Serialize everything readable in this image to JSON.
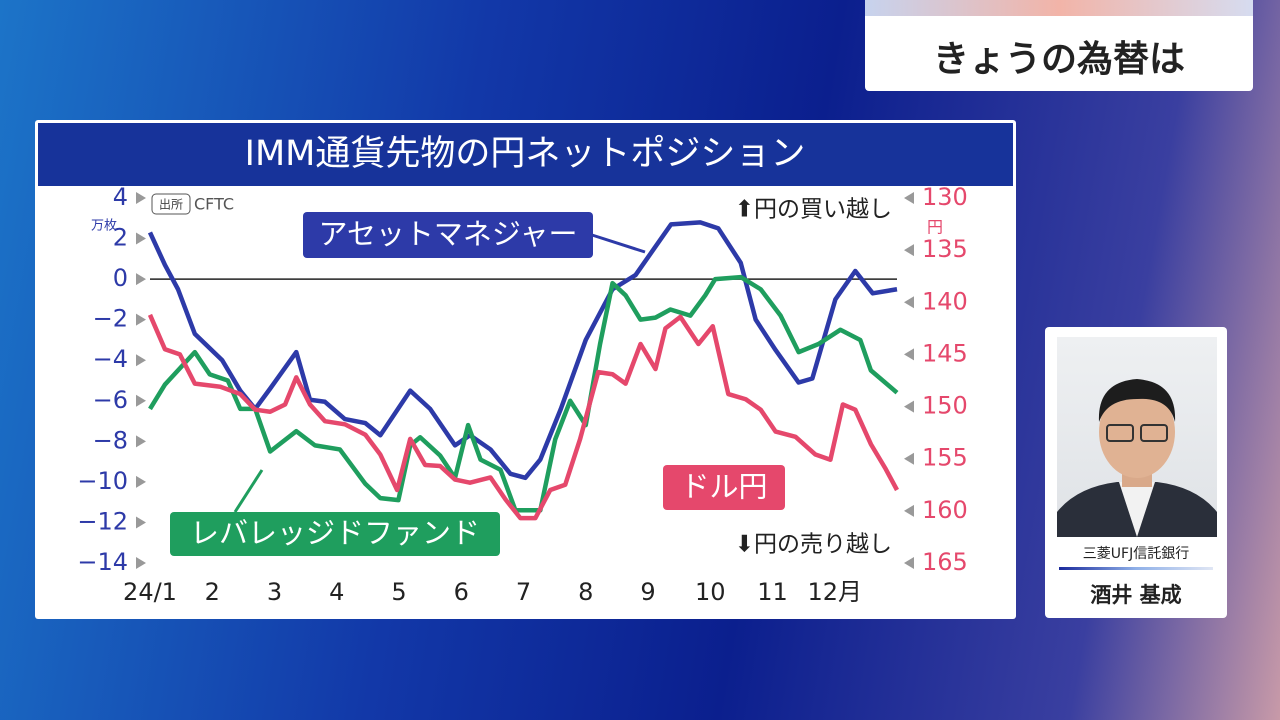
{
  "header": {
    "title": "きょうの為替は"
  },
  "chart_data": {
    "type": "line",
    "title": "IMM通貨先物の円ネットポジション",
    "source_label": "出所",
    "source": "CFTC",
    "y_unit": "万枚",
    "y2_unit": "円",
    "annotations": [
      "⬆円の買い越し",
      "⬇円の売り越し"
    ],
    "xlim": [
      1,
      13
    ],
    "xticks": [
      {
        "value": 1,
        "label": "24/1"
      },
      2,
      3,
      4,
      5,
      6,
      7,
      8,
      9,
      10,
      11,
      {
        "value": 12,
        "label": "12月"
      }
    ],
    "ylim": [
      -14,
      4
    ],
    "yticks": [
      4,
      2,
      0,
      {
        "value": -2,
        "label": "−2"
      },
      {
        "value": -4,
        "label": "−4"
      },
      {
        "value": -6,
        "label": "−6"
      },
      {
        "value": -8,
        "label": "−8"
      },
      {
        "value": -10,
        "label": "−10"
      },
      {
        "value": -12,
        "label": "−12"
      },
      {
        "value": -14,
        "label": "−14"
      }
    ],
    "y2lim": [
      165,
      130
    ],
    "y2ticks": [
      130,
      135,
      140,
      145,
      150,
      155,
      160,
      165
    ],
    "zero_line": 0,
    "series": [
      {
        "name": "アセットマネジャー",
        "color": "#2d3aa8",
        "x": [
          1.0,
          1.24,
          1.45,
          1.72,
          2.16,
          2.45,
          2.69,
          2.93,
          3.35,
          3.57,
          3.81,
          4.13,
          4.46,
          4.7,
          5.18,
          5.5,
          5.9,
          6.14,
          6.47,
          6.79,
          7.03,
          7.27,
          7.6,
          8.0,
          8.43,
          8.8,
          9.37,
          9.84,
          10.13,
          10.49,
          10.73,
          11.05,
          11.42,
          11.64,
          12.01,
          12.33,
          12.61,
          13.0
        ],
        "values": [
          2.3,
          0.7,
          -0.5,
          -2.7,
          -4,
          -5.5,
          -6.4,
          -5.4,
          -3.6,
          -5.95,
          -6.05,
          -6.9,
          -7.1,
          -7.7,
          -5.5,
          -6.4,
          -8.2,
          -7.7,
          -8.4,
          -9.6,
          -9.8,
          -8.9,
          -6.4,
          -3.0,
          -0.5,
          0.2,
          2.7,
          2.8,
          2.5,
          0.8,
          -2.0,
          -3.5,
          -5.1,
          -4.9,
          -1.0,
          0.4,
          -0.7,
          -0.5
        ]
      },
      {
        "name": "レバレッジドファンド",
        "color": "#1f9e5e",
        "x": [
          1.0,
          1.24,
          1.72,
          1.96,
          2.25,
          2.45,
          2.69,
          2.93,
          3.35,
          3.65,
          4.05,
          4.46,
          4.7,
          4.99,
          5.18,
          5.34,
          5.66,
          5.9,
          6.11,
          6.31,
          6.63,
          6.87,
          7.27,
          7.51,
          7.75,
          8.0,
          8.23,
          8.43,
          8.64,
          8.88,
          9.12,
          9.36,
          9.68,
          9.92,
          10.08,
          10.49,
          10.81,
          11.13,
          11.42,
          11.74,
          12.09,
          12.41,
          12.58,
          13.0
        ],
        "values": [
          -6.4,
          -5.2,
          -3.6,
          -4.7,
          -5,
          -6.4,
          -6.4,
          -8.5,
          -7.5,
          -8.2,
          -8.4,
          -10.1,
          -10.8,
          -10.9,
          -8.2,
          -7.8,
          -8.7,
          -9.8,
          -7.2,
          -8.9,
          -9.4,
          -11.4,
          -11.4,
          -7.9,
          -6.0,
          -7.2,
          -3.2,
          -0.2,
          -0.8,
          -2.0,
          -1.9,
          -1.5,
          -1.8,
          -0.8,
          0.0,
          0.1,
          -0.5,
          -1.8,
          -3.6,
          -3.2,
          -2.5,
          -3.0,
          -4.5,
          -5.6
        ]
      },
      {
        "name": "ドル円",
        "color": "#e5486c",
        "axis": "y2",
        "x": [
          1.0,
          1.24,
          1.48,
          1.72,
          2.13,
          2.45,
          2.69,
          2.93,
          3.17,
          3.35,
          3.57,
          3.81,
          4.13,
          4.46,
          4.7,
          4.97,
          5.18,
          5.42,
          5.66,
          5.9,
          6.14,
          6.47,
          6.71,
          6.95,
          7.19,
          7.43,
          7.67,
          7.91,
          8.2,
          8.43,
          8.64,
          8.88,
          9.12,
          9.28,
          9.52,
          9.81,
          10.04,
          10.29,
          10.57,
          10.81,
          11.05,
          11.37,
          11.69,
          11.93,
          12.13,
          12.33,
          12.58,
          12.82,
          13.0
        ],
        "values": [
          141.2,
          144.5,
          145,
          147.8,
          148.1,
          148.8,
          150.3,
          150.5,
          149.8,
          147.2,
          149.8,
          151.4,
          151.7,
          152.7,
          154.6,
          158,
          153.1,
          155.6,
          155.7,
          157,
          157.3,
          156.8,
          158.9,
          160.7,
          160.7,
          158,
          157.5,
          153.1,
          146.7,
          146.9,
          147.8,
          144,
          146.4,
          142.5,
          141.4,
          144,
          142.3,
          148.8,
          149.3,
          150.3,
          152.4,
          152.9,
          154.6,
          155.1,
          149.8,
          150.3,
          153.6,
          156,
          158
        ]
      }
    ]
  },
  "guest": {
    "affiliation": "三菱UFJ信託銀行",
    "name": "酒井 基成"
  }
}
